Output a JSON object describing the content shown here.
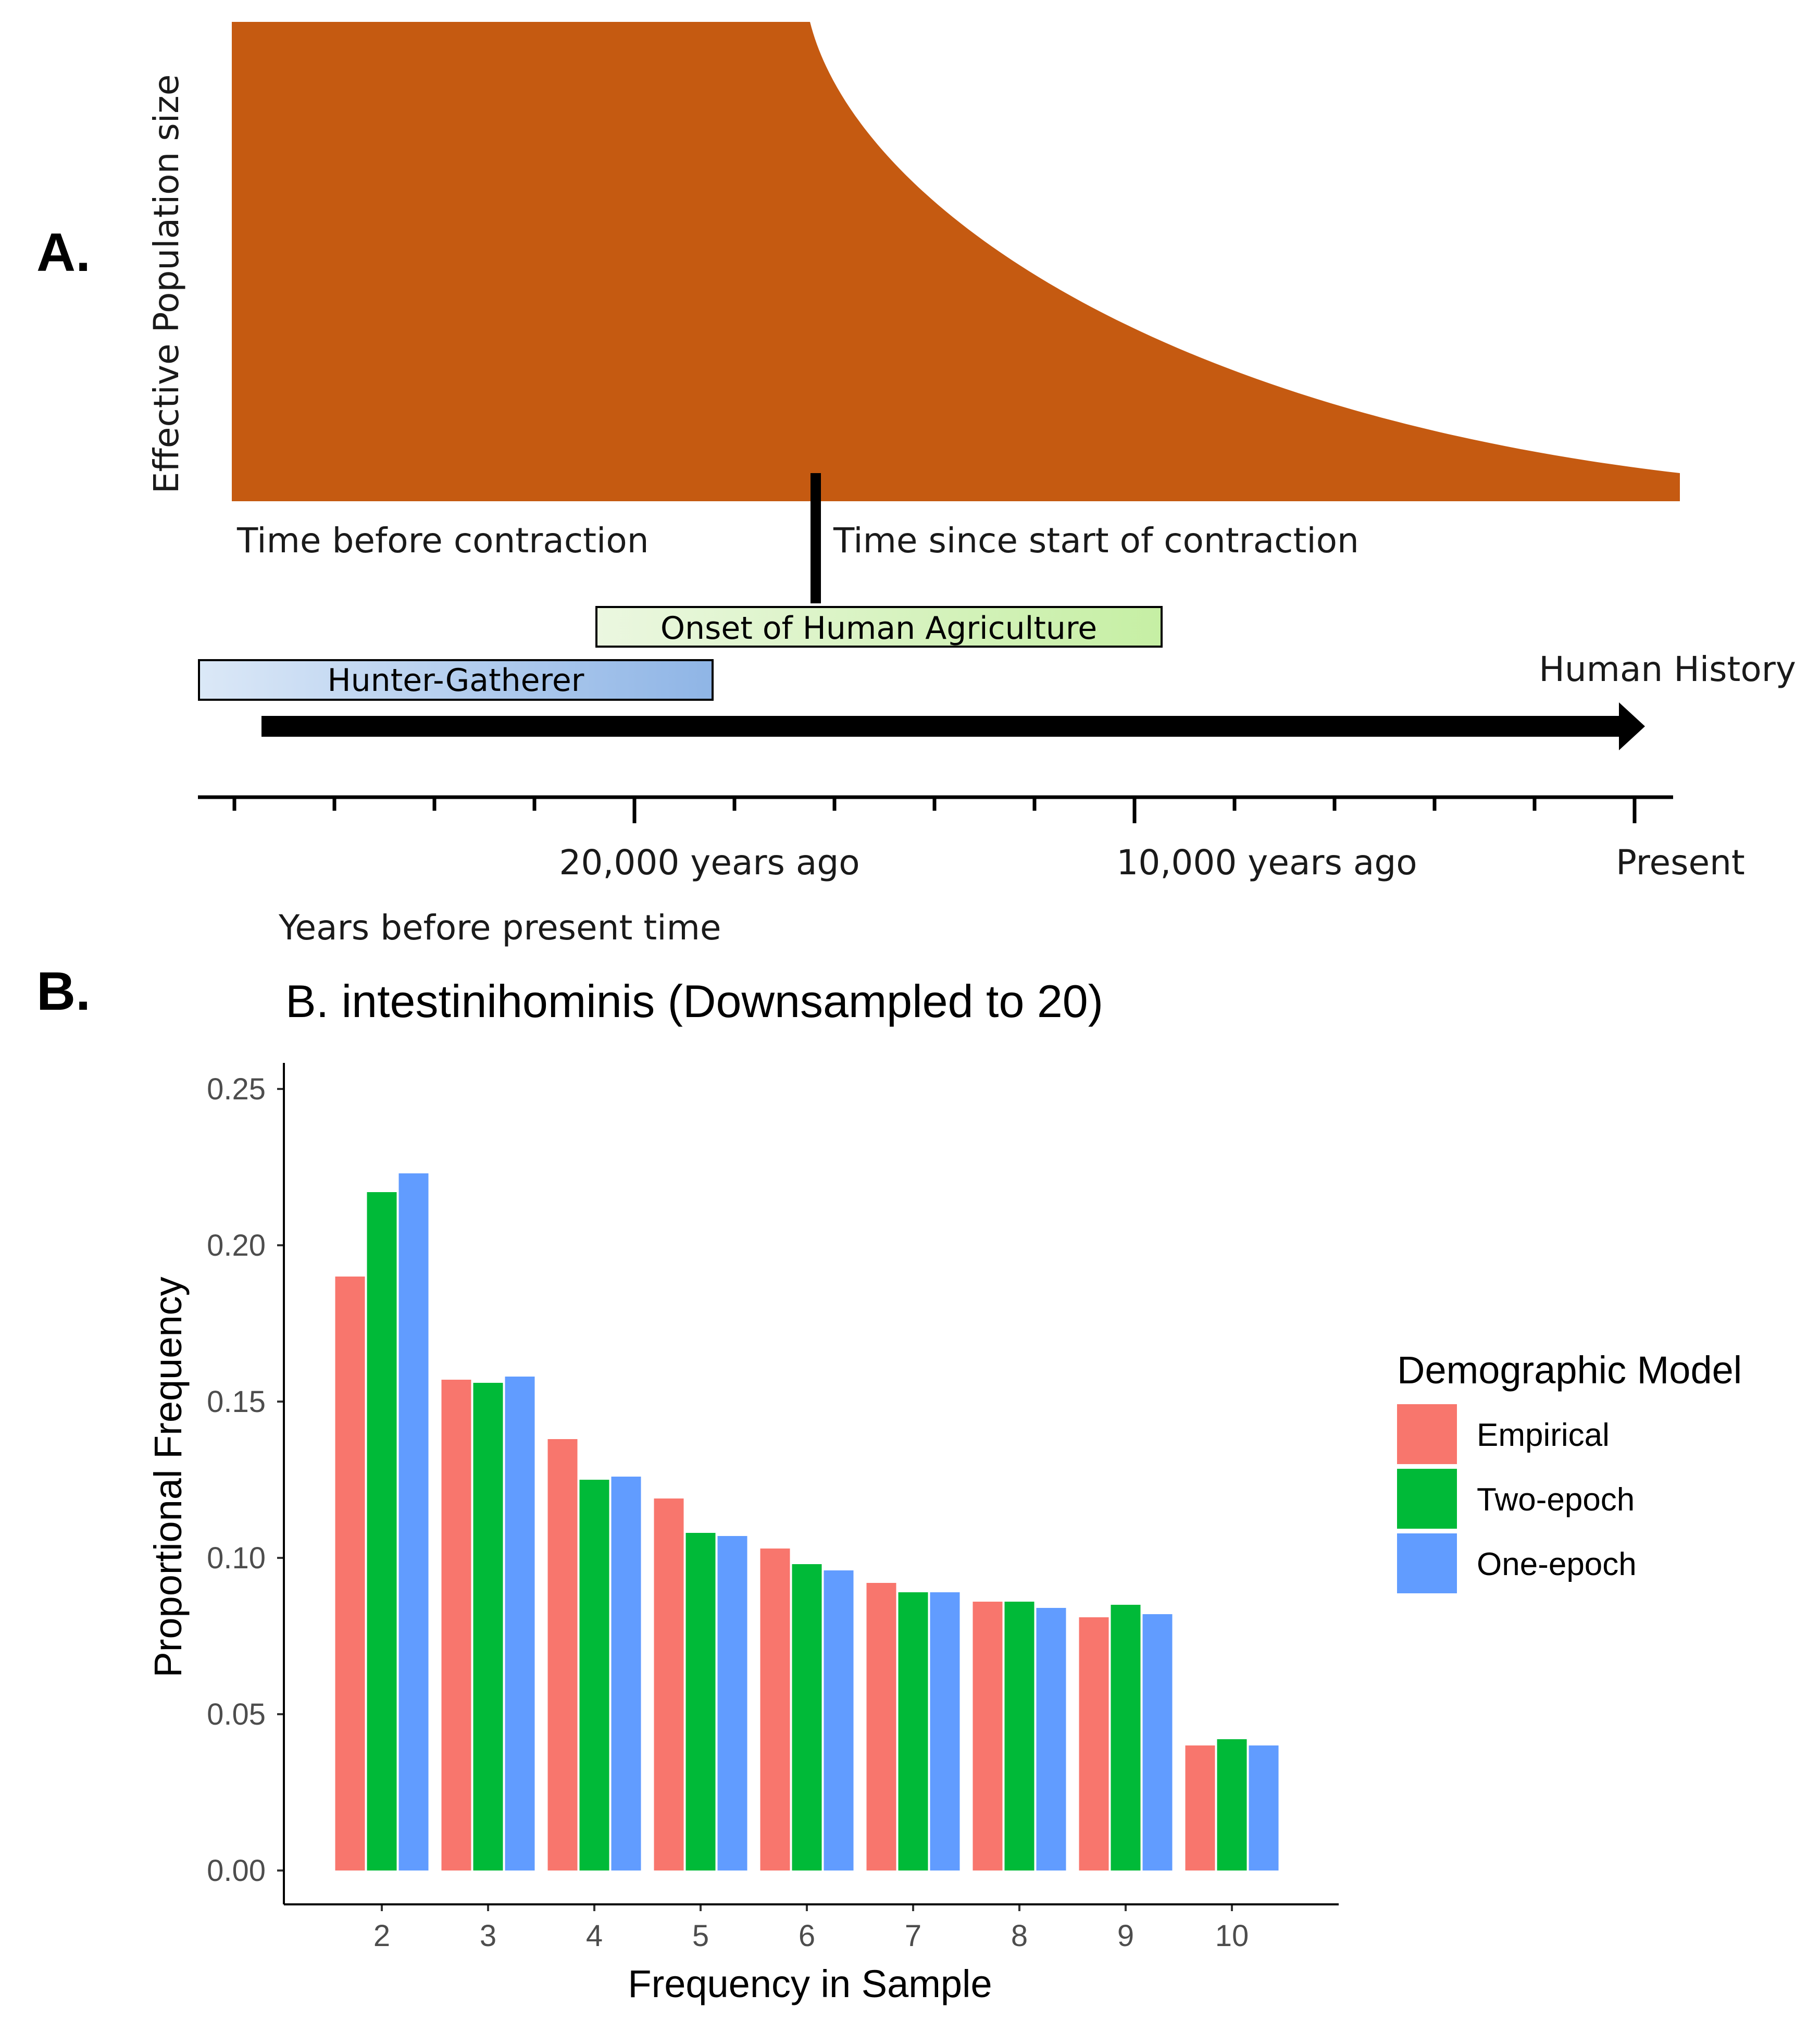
{
  "panel_a": {
    "label": "A.",
    "y_axis_label": "Effective Population size",
    "left_caption": "Time before contraction",
    "right_caption": "Time since start of contraction",
    "onset_box": "Onset of Human Agriculture",
    "hunter_box": "Hunter-Gatherer",
    "arrow_label": "Human History",
    "timeline_labels": [
      "20,000 years ago",
      "10,000 years ago",
      "Present"
    ],
    "x_axis_title": "Years before present time",
    "colors": {
      "population": "#c55a11",
      "onset_box_light": "#ebf7e0",
      "onset_box_dark": "#c6efa4",
      "hunter_box_light": "#dbe8f7",
      "hunter_box_dark": "#8fb5e6"
    }
  },
  "panel_b": {
    "label": "B."
  },
  "chart_data": {
    "type": "bar",
    "title": "B. intestinihominis (Downsampled to 20)",
    "xlabel": "Frequency in Sample",
    "ylabel": "Proportional Frequency",
    "categories": [
      "2",
      "3",
      "4",
      "5",
      "6",
      "7",
      "8",
      "9",
      "10"
    ],
    "ylim": [
      0,
      0.26
    ],
    "yticks": [
      0.0,
      0.05,
      0.1,
      0.15,
      0.2,
      0.25
    ],
    "ytick_labels": [
      "0.00",
      "0.05",
      "0.10",
      "0.15",
      "0.20",
      "0.25"
    ],
    "grid": false,
    "legend": {
      "title": "Demographic Model",
      "position": "right"
    },
    "series": [
      {
        "name": "Empirical",
        "color": "#f8766d",
        "values": [
          0.19,
          0.157,
          0.138,
          0.119,
          0.103,
          0.092,
          0.086,
          0.081,
          0.04
        ]
      },
      {
        "name": "Two-epoch",
        "color": "#00ba38",
        "values": [
          0.217,
          0.156,
          0.125,
          0.108,
          0.098,
          0.089,
          0.086,
          0.085,
          0.042
        ]
      },
      {
        "name": "One-epoch",
        "color": "#619cff",
        "values": [
          0.223,
          0.158,
          0.126,
          0.107,
          0.096,
          0.089,
          0.084,
          0.082,
          0.04
        ]
      }
    ]
  }
}
